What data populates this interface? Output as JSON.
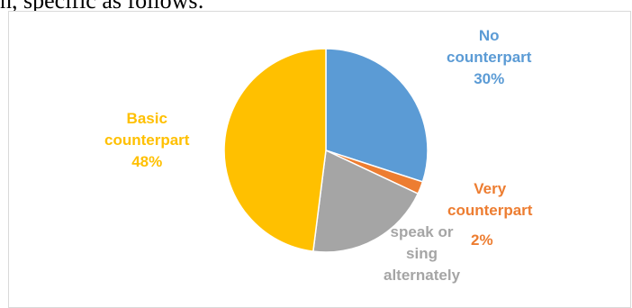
{
  "top_text": "n, specific as follows:",
  "chart_data": {
    "type": "pie",
    "title": "",
    "slices": [
      {
        "label": "No counterpart",
        "percent_label": "30%",
        "value": 30,
        "color": "#5b9bd5"
      },
      {
        "label": "Very counterpart",
        "percent_label": "2%",
        "value": 2,
        "color": "#ed7d31"
      },
      {
        "label": "speak or sing alternately",
        "percent_label": "20%",
        "value": 20,
        "color": "#a5a5a5"
      },
      {
        "label": "Basic counterpart",
        "percent_label": "48%",
        "value": 48,
        "color": "#ffc000"
      }
    ],
    "labels": {
      "no_counterpart": {
        "lines": [
          "No",
          "counterpart",
          "30%"
        ]
      },
      "very_counterpart": {
        "lines": [
          "Very",
          "counterpart"
        ],
        "pct": "2%"
      },
      "speak_or_sing": {
        "lines": [
          "speak or",
          "sing",
          "alternately"
        ]
      },
      "basic_counterpart": {
        "lines": [
          "Basic",
          "counterpart",
          "48%"
        ]
      }
    }
  }
}
